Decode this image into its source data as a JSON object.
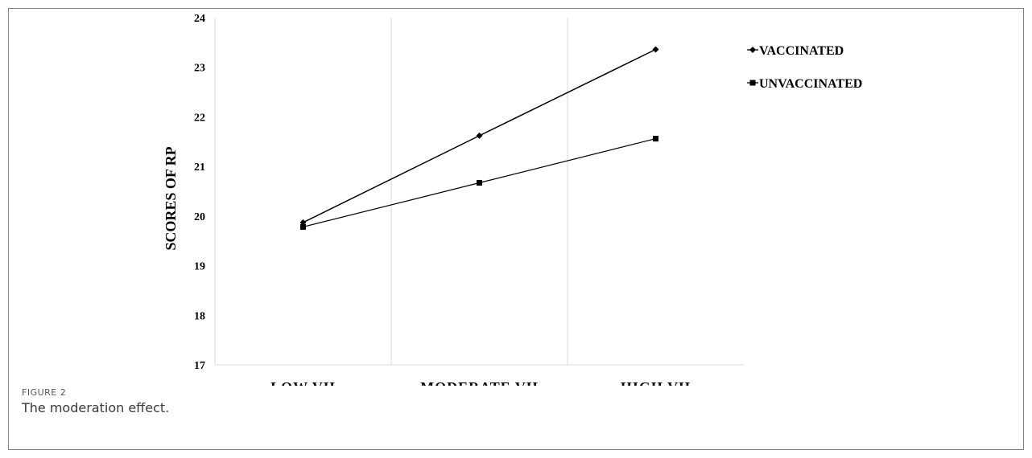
{
  "figure": {
    "label": "FIGURE 2",
    "caption": "The moderation effect."
  },
  "chart_data": {
    "type": "line",
    "categories": [
      "LOW VH",
      "MODERATE VH",
      "HIGH VH"
    ],
    "series": [
      {
        "name": "VACCINATED",
        "values": [
          19.87,
          21.62,
          23.36
        ],
        "marker": "diamond",
        "color": "#000000"
      },
      {
        "name": "UNVACCINATED",
        "values": [
          19.78,
          20.67,
          21.56
        ],
        "marker": "square",
        "color": "#000000"
      }
    ],
    "title": "",
    "xlabel": "",
    "ylabel": "SCORES OF RP",
    "ylim": [
      17,
      24
    ],
    "yticks": [
      "17",
      "18",
      "19",
      "20",
      "21",
      "22",
      "23",
      "24"
    ],
    "grid": "vertical",
    "legend": "right"
  }
}
